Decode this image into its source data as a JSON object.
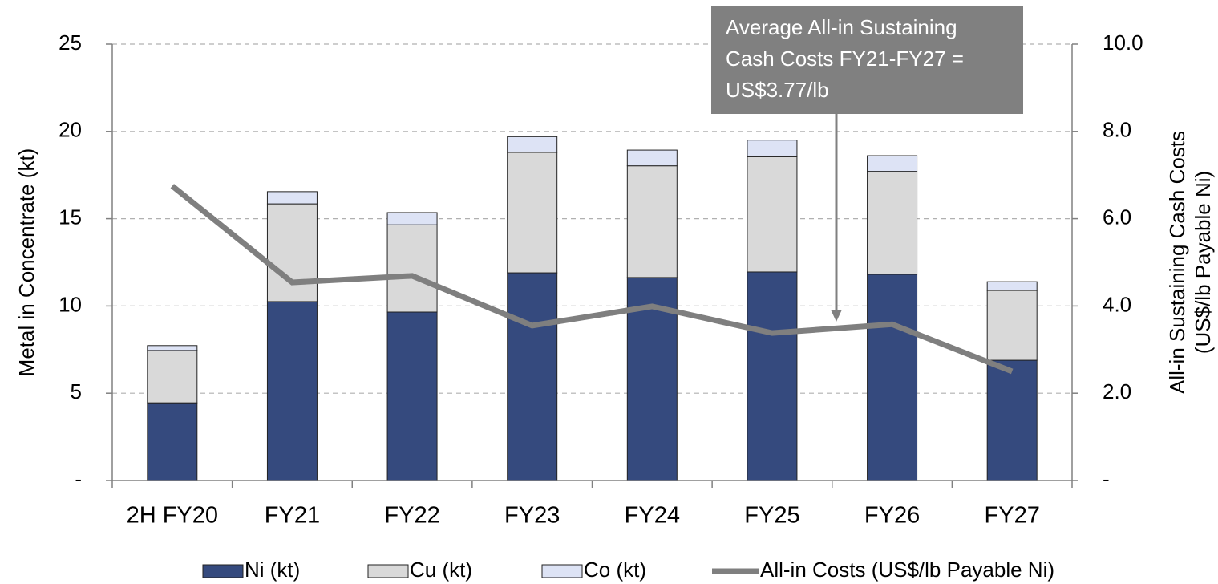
{
  "chart_data": {
    "type": "bar",
    "stacked": true,
    "categories": [
      "2H FY20",
      "FY21",
      "FY22",
      "FY23",
      "FY24",
      "FY25",
      "FY26",
      "FY27"
    ],
    "series": [
      {
        "name": "Ni (kt)",
        "type": "bar",
        "color": "#354a7e",
        "values": [
          4.45,
          10.25,
          9.65,
          11.9,
          11.63,
          11.95,
          11.81,
          6.89
        ]
      },
      {
        "name": "Cu (kt)",
        "type": "bar",
        "color": "#d9d9d9",
        "values": [
          3.0,
          5.6,
          5.0,
          6.9,
          6.4,
          6.6,
          5.9,
          4.0
        ]
      },
      {
        "name": "Co (kt)",
        "type": "bar",
        "color": "#dde3f5",
        "values": [
          0.28,
          0.7,
          0.7,
          0.9,
          0.9,
          0.95,
          0.9,
          0.5
        ]
      },
      {
        "name": "All-in Costs (US$/lb Payable Ni)",
        "type": "line",
        "axis": "y2",
        "color": "#7f7f7f",
        "values": [
          6.75,
          4.54,
          4.69,
          3.55,
          3.99,
          3.38,
          3.58,
          2.5
        ]
      }
    ],
    "ylabel": "Metal in Concentrate (kt)",
    "y2label": [
      "All-in Sustaining Cash Costs",
      "(US$/lb Payable Ni)"
    ],
    "ylim": [
      0,
      25
    ],
    "yticks": [
      {
        "value": 0,
        "label": "-"
      },
      5,
      10,
      15,
      20,
      25
    ],
    "y2lim": [
      0,
      10
    ],
    "y2ticks": [
      {
        "value": 0,
        "label": "-"
      },
      {
        "value": 2,
        "label": "2.0"
      },
      {
        "value": 4,
        "label": "4.0"
      },
      {
        "value": 6,
        "label": "6.0"
      },
      {
        "value": 8,
        "label": "8.0"
      },
      {
        "value": 10,
        "label": "10.0"
      }
    ],
    "grid": true,
    "legend": "bottom",
    "annotation": [
      "Average All-in Sustaining",
      "Cash Costs FY21-FY27 =",
      "US$3.77/lb"
    ]
  }
}
